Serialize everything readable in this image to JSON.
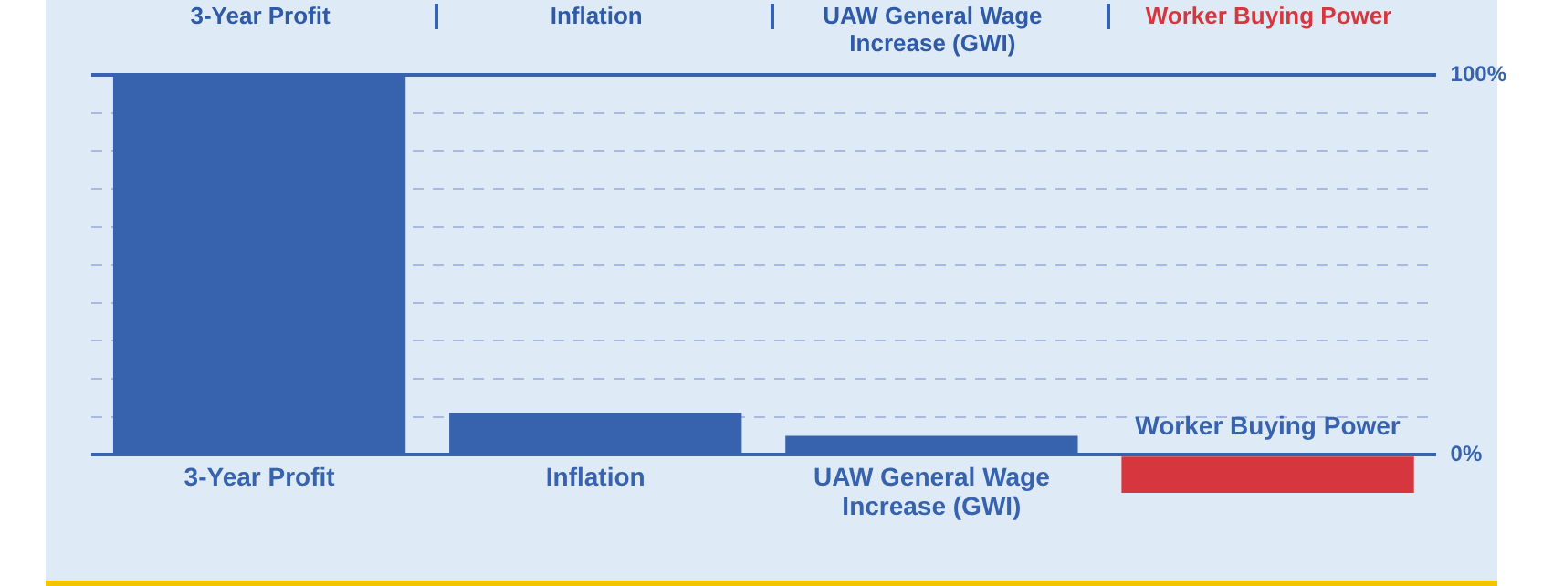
{
  "chart_data": {
    "type": "bar",
    "categories": [
      "3-Year Profit",
      "Inflation",
      "UAW General Wage Increase (GWI)",
      "Worker Buying Power"
    ],
    "values": [
      100,
      11,
      5,
      -10
    ],
    "colors": [
      "#3762ae",
      "#3762ae",
      "#3762ae",
      "#d6363d"
    ],
    "ylim": [
      -10,
      100
    ],
    "yticks": [
      {
        "value": 0,
        "label": "0%"
      },
      {
        "value": 10,
        "label": null
      },
      {
        "value": 20,
        "label": null
      },
      {
        "value": 30,
        "label": null
      },
      {
        "value": 40,
        "label": null
      },
      {
        "value": 50,
        "label": null
      },
      {
        "value": 60,
        "label": null
      },
      {
        "value": 70,
        "label": null
      },
      {
        "value": 80,
        "label": null
      },
      {
        "value": 90,
        "label": null
      },
      {
        "value": 100,
        "label": "100%"
      }
    ],
    "grid": "y",
    "legend": false,
    "annotations": [
      "3-Year Profit",
      "Inflation",
      "UAW General Wage Increase (GWI)",
      "Worker Buying Power"
    ]
  }
}
